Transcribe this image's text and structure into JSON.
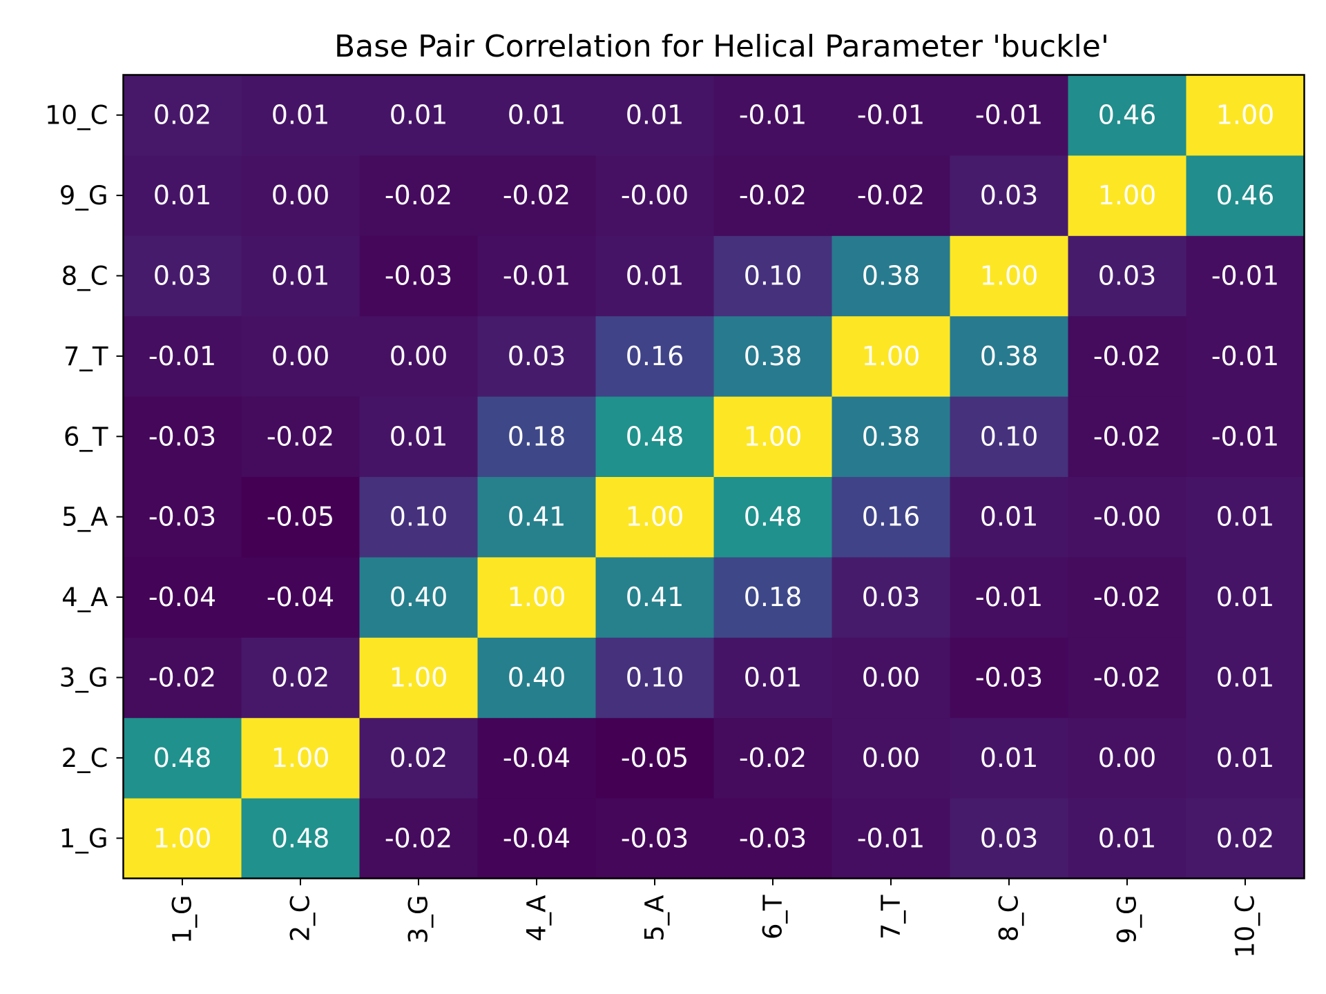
{
  "chart_data": {
    "type": "heatmap",
    "title": "Base Pair Correlation for Helical Parameter 'buckle'",
    "xlabel": "",
    "ylabel": "",
    "x_categories": [
      "1_G",
      "2_C",
      "3_G",
      "4_A",
      "5_A",
      "6_T",
      "7_T",
      "8_C",
      "9_G",
      "10_C"
    ],
    "y_categories": [
      "1_G",
      "2_C",
      "3_G",
      "4_A",
      "5_A",
      "6_T",
      "7_T",
      "8_C",
      "9_G",
      "10_C"
    ],
    "y_order": "bottom-to-top",
    "colormap": "viridis",
    "value_range": [
      -0.05,
      1.0
    ],
    "values": [
      [
        "1.00",
        "0.48",
        "-0.02",
        "-0.04",
        "-0.03",
        "-0.03",
        "-0.01",
        "0.03",
        "0.01",
        "0.02"
      ],
      [
        "0.48",
        "1.00",
        "0.02",
        "-0.04",
        "-0.05",
        "-0.02",
        "0.00",
        "0.01",
        "0.00",
        "0.01"
      ],
      [
        "-0.02",
        "0.02",
        "1.00",
        "0.40",
        "0.10",
        "0.01",
        "0.00",
        "-0.03",
        "-0.02",
        "0.01"
      ],
      [
        "-0.04",
        "-0.04",
        "0.40",
        "1.00",
        "0.41",
        "0.18",
        "0.03",
        "-0.01",
        "-0.02",
        "0.01"
      ],
      [
        "-0.03",
        "-0.05",
        "0.10",
        "0.41",
        "1.00",
        "0.48",
        "0.16",
        "0.01",
        "-0.00",
        "0.01"
      ],
      [
        "-0.03",
        "-0.02",
        "0.01",
        "0.18",
        "0.48",
        "1.00",
        "0.38",
        "0.10",
        "-0.02",
        "-0.01"
      ],
      [
        "-0.01",
        "0.00",
        "0.00",
        "0.03",
        "0.16",
        "0.38",
        "1.00",
        "0.38",
        "-0.02",
        "-0.01"
      ],
      [
        "0.03",
        "0.01",
        "-0.03",
        "-0.01",
        "0.01",
        "0.10",
        "0.38",
        "1.00",
        "0.03",
        "-0.01"
      ],
      [
        "0.01",
        "0.00",
        "-0.02",
        "-0.02",
        "-0.00",
        "-0.02",
        "-0.02",
        "0.03",
        "1.00",
        "0.46"
      ],
      [
        "0.02",
        "0.01",
        "0.01",
        "0.01",
        "0.01",
        "-0.01",
        "-0.01",
        "-0.01",
        "0.46",
        "1.00"
      ]
    ],
    "grid": false,
    "legend": "none"
  }
}
